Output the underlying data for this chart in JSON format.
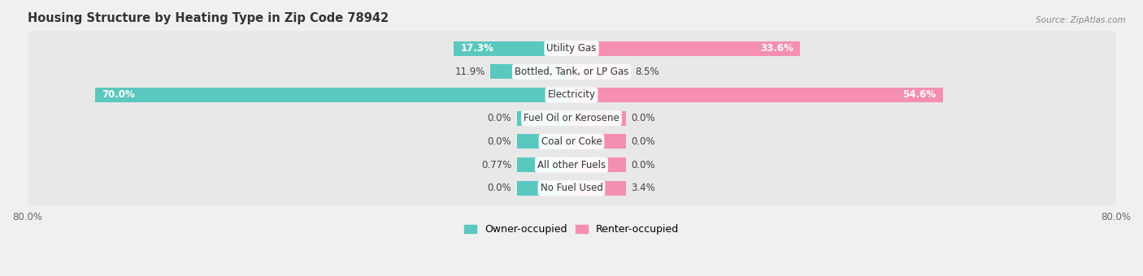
{
  "title": "Housing Structure by Heating Type in Zip Code 78942",
  "source": "Source: ZipAtlas.com",
  "categories": [
    "Utility Gas",
    "Bottled, Tank, or LP Gas",
    "Electricity",
    "Fuel Oil or Kerosene",
    "Coal or Coke",
    "All other Fuels",
    "No Fuel Used"
  ],
  "owner_values": [
    17.3,
    11.9,
    70.0,
    0.0,
    0.0,
    0.77,
    0.0
  ],
  "renter_values": [
    33.6,
    8.5,
    54.6,
    0.0,
    0.0,
    0.0,
    3.4
  ],
  "owner_labels": [
    "17.3%",
    "11.9%",
    "70.0%",
    "0.0%",
    "0.0%",
    "0.77%",
    "0.0%"
  ],
  "renter_labels": [
    "33.6%",
    "8.5%",
    "54.6%",
    "0.0%",
    "0.0%",
    "0.0%",
    "3.4%"
  ],
  "owner_color": "#5BC8C0",
  "renter_color": "#F48FB1",
  "background_color": "#F0F0F0",
  "row_bg_even": "#E8E8E8",
  "row_bg_odd": "#EEEEEE",
  "axis_min": -80.0,
  "axis_max": 80.0,
  "min_bar_display": 8.0,
  "label_fontsize": 8.5,
  "title_fontsize": 10.5,
  "category_fontsize": 8.5,
  "legend_fontsize": 9
}
